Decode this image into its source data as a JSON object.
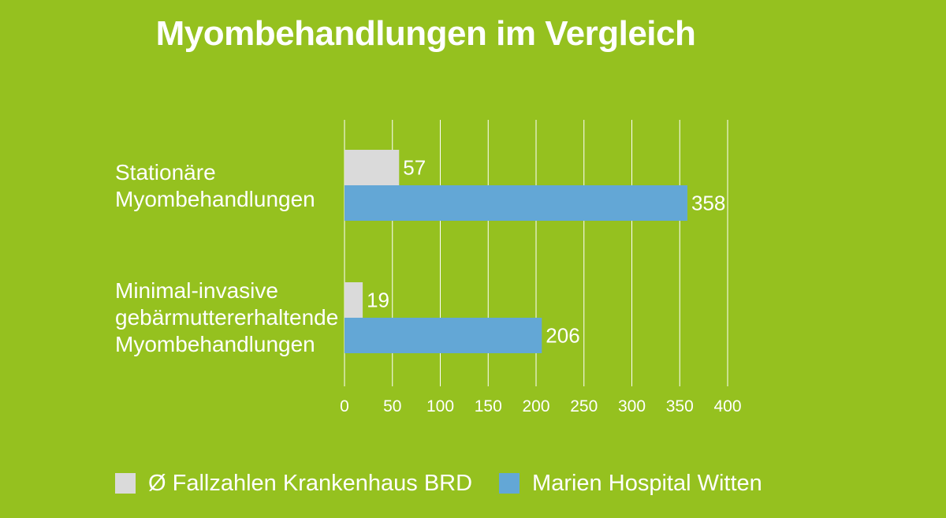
{
  "chart_data": {
    "type": "bar",
    "orientation": "horizontal",
    "title": "Myombehandlungen im Vergleich",
    "categories": [
      "Stationäre\nMyombehandlungen",
      "Minimal-invasive\ngebärmuttererhaltende\nMyombehandlungen"
    ],
    "series": [
      {
        "name": "Ø Fallzahlen Krankenhaus BRD",
        "values": [
          57,
          19
        ],
        "color": "#dadada"
      },
      {
        "name": "Marien Hospital Witten",
        "values": [
          358,
          206
        ],
        "color": "#63a7d6"
      }
    ],
    "xlim": [
      0,
      400
    ],
    "xticks": [
      "0",
      "50",
      "100",
      "150",
      "200",
      "250",
      "300",
      "350",
      "400"
    ],
    "grid": true,
    "legend": "bottom"
  }
}
